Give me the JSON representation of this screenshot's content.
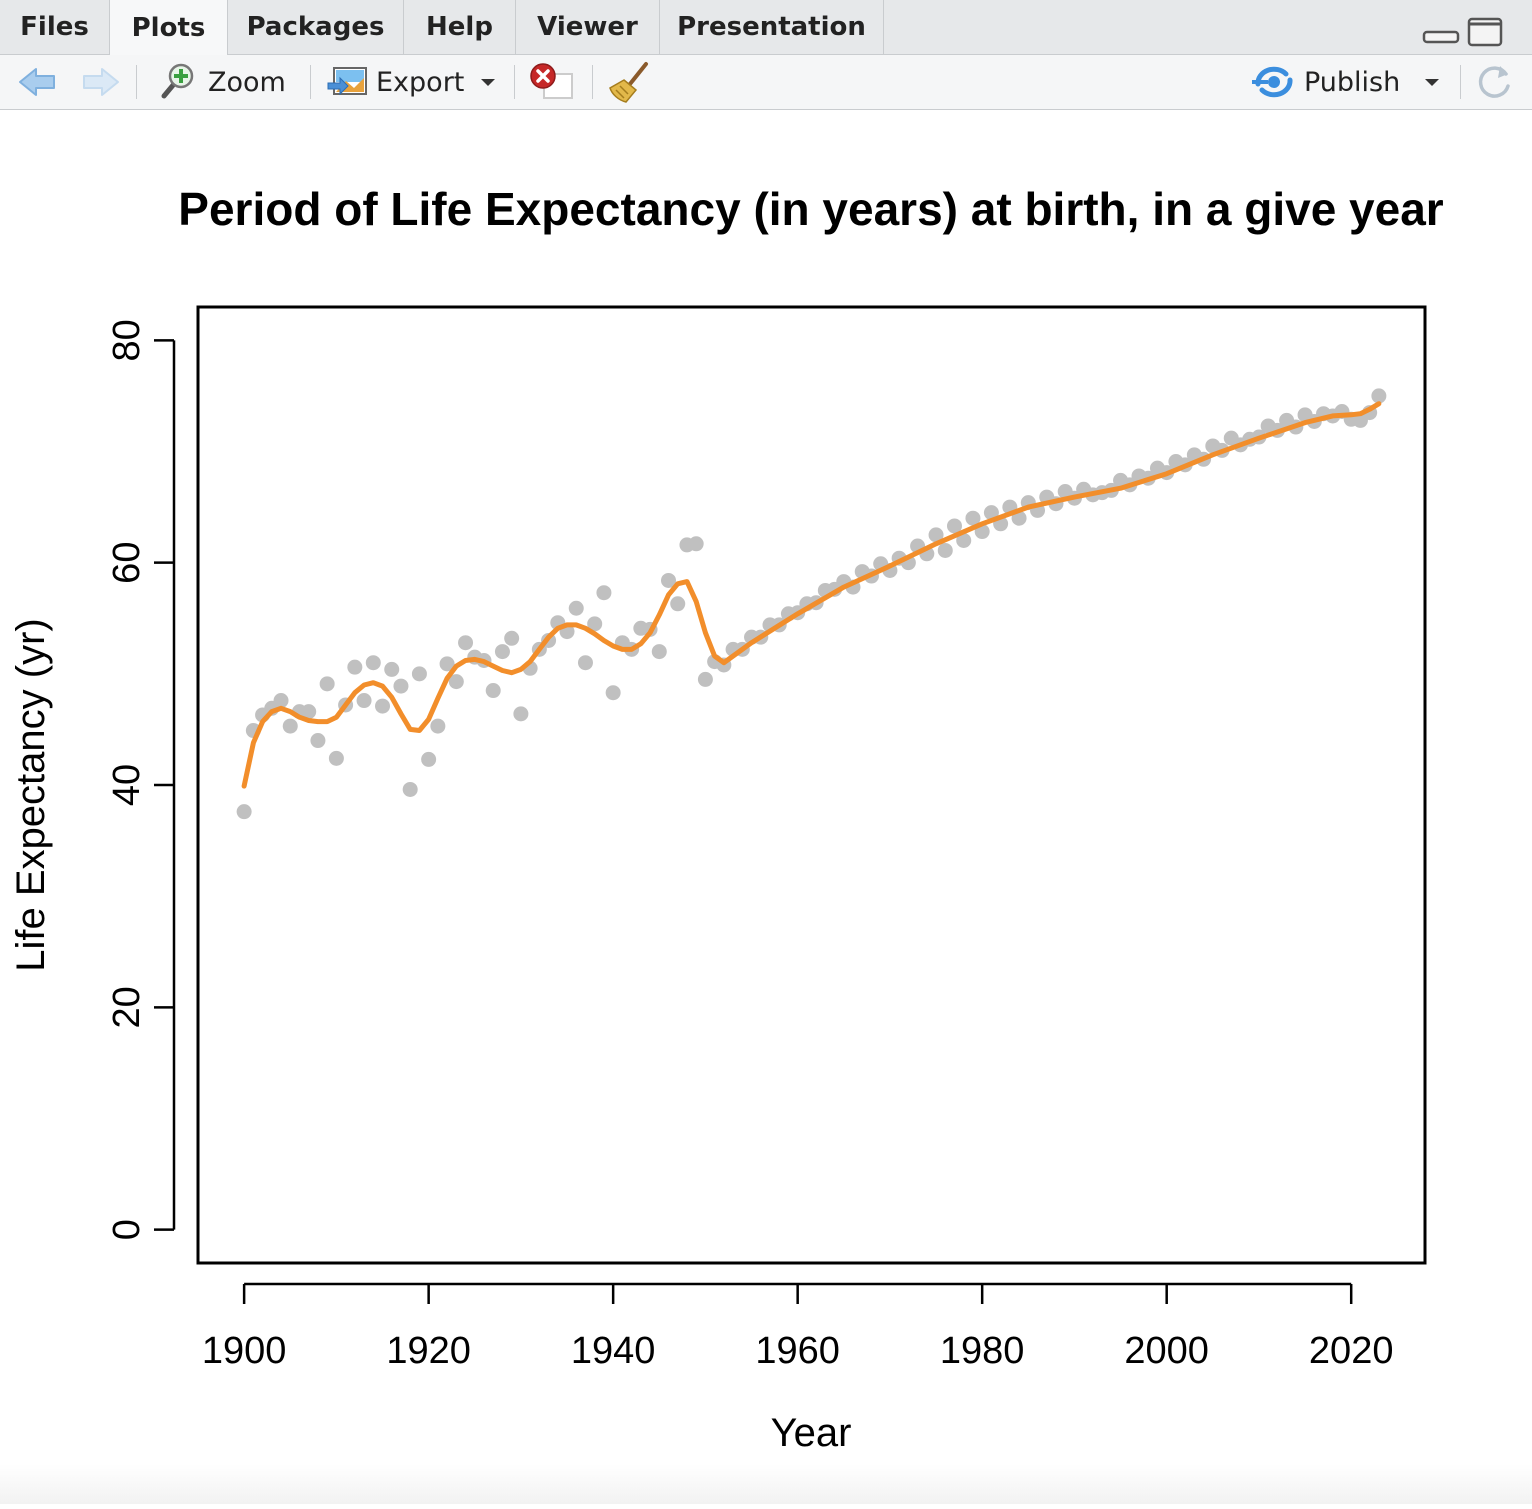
{
  "tabs": [
    {
      "label": "Files",
      "active": false
    },
    {
      "label": "Plots",
      "active": true
    },
    {
      "label": "Packages",
      "active": false
    },
    {
      "label": "Help",
      "active": false
    },
    {
      "label": "Viewer",
      "active": false
    },
    {
      "label": "Presentation",
      "active": false
    }
  ],
  "toolbar": {
    "zoom_label": "Zoom",
    "export_label": "Export",
    "publish_label": "Publish"
  },
  "icons": {
    "back": "back-arrow-icon",
    "forward": "forward-arrow-icon",
    "zoom": "magnifier-icon",
    "export": "export-image-icon",
    "remove": "remove-plot-icon",
    "clear": "broom-icon",
    "publish": "publish-icon",
    "refresh": "refresh-icon",
    "minimize": "minimize-icon",
    "maximize": "maximize-icon"
  },
  "colors": {
    "points": "#c0c0c0",
    "line": "#f28e2b",
    "frame": "#000000"
  },
  "chart_data": {
    "type": "scatter",
    "title": "Period of Life Expectancy (in years) at birth, in a give year",
    "xlabel": "Year",
    "ylabel": "Life Expectancy (yr)",
    "xlim": [
      1895,
      2028
    ],
    "ylim": [
      -3,
      83
    ],
    "xticks": [
      1900,
      1920,
      1940,
      1960,
      1980,
      2000,
      2020
    ],
    "yticks": [
      0,
      20,
      40,
      60,
      80
    ],
    "grid": false,
    "legend": "none",
    "series": [
      {
        "kind": "points",
        "x": [
          1900,
          1901,
          1902,
          1903,
          1904,
          1905,
          1906,
          1907,
          1908,
          1909,
          1910,
          1911,
          1912,
          1913,
          1914,
          1915,
          1916,
          1917,
          1918,
          1919,
          1920,
          1921,
          1922,
          1923,
          1924,
          1925,
          1926,
          1927,
          1928,
          1929,
          1930,
          1931,
          1932,
          1933,
          1934,
          1935,
          1936,
          1937,
          1938,
          1939,
          1940,
          1941,
          1942,
          1943,
          1944,
          1945,
          1946,
          1947,
          1948,
          1949,
          1950,
          1951,
          1952,
          1953,
          1954,
          1955,
          1956,
          1957,
          1958,
          1959,
          1960,
          1961,
          1962,
          1963,
          1964,
          1965,
          1966,
          1967,
          1968,
          1969,
          1970,
          1971,
          1972,
          1973,
          1974,
          1975,
          1976,
          1977,
          1978,
          1979,
          1980,
          1981,
          1982,
          1983,
          1984,
          1985,
          1986,
          1987,
          1988,
          1989,
          1990,
          1991,
          1992,
          1993,
          1994,
          1995,
          1996,
          1997,
          1998,
          1999,
          2000,
          2001,
          2002,
          2003,
          2004,
          2005,
          2006,
          2007,
          2008,
          2009,
          2010,
          2011,
          2012,
          2013,
          2014,
          2015,
          2016,
          2017,
          2018,
          2019,
          2020,
          2021,
          2022,
          2023
        ],
        "y": [
          37.6,
          44.9,
          46.3,
          46.9,
          47.6,
          45.3,
          46.6,
          46.6,
          44.0,
          49.1,
          42.4,
          47.2,
          50.6,
          47.6,
          51.0,
          47.1,
          50.4,
          48.9,
          39.6,
          50.0,
          42.3,
          45.3,
          50.9,
          49.3,
          52.8,
          51.5,
          51.2,
          48.5,
          52.0,
          53.2,
          46.4,
          50.5,
          52.2,
          53.0,
          54.6,
          53.8,
          55.9,
          51.0,
          54.5,
          57.3,
          48.3,
          52.8,
          52.2,
          54.1,
          54.0,
          52.0,
          58.4,
          56.3,
          61.6,
          61.7,
          49.5,
          51.1,
          50.8,
          52.2,
          52.2,
          53.3,
          53.3,
          54.4,
          54.4,
          55.4,
          55.5,
          56.3,
          56.4,
          57.5,
          57.6,
          58.3,
          57.8,
          59.2,
          58.8,
          59.9,
          59.3,
          60.4,
          60.0,
          61.5,
          60.8,
          62.5,
          61.1,
          63.3,
          62.0,
          64.0,
          62.8,
          64.5,
          63.5,
          65.0,
          64.0,
          65.4,
          64.7,
          65.9,
          65.3,
          66.4,
          65.8,
          66.6,
          66.1,
          66.3,
          66.5,
          67.4,
          67.0,
          67.8,
          67.6,
          68.5,
          68.1,
          69.1,
          68.8,
          69.7,
          69.3,
          70.5,
          70.1,
          71.2,
          70.6,
          71.1,
          71.3,
          72.3,
          71.9,
          72.8,
          72.2,
          73.3,
          72.7,
          73.4,
          73.2,
          73.6,
          72.9,
          72.8,
          73.5,
          75.0
        ]
      },
      {
        "kind": "smooth-line",
        "x": [
          1900,
          1901,
          1902,
          1903,
          1904,
          1905,
          1906,
          1907,
          1908,
          1909,
          1910,
          1911,
          1912,
          1913,
          1914,
          1915,
          1916,
          1917,
          1918,
          1919,
          1920,
          1921,
          1922,
          1923,
          1924,
          1925,
          1926,
          1927,
          1928,
          1929,
          1930,
          1931,
          1932,
          1933,
          1934,
          1935,
          1936,
          1937,
          1938,
          1939,
          1940,
          1941,
          1942,
          1943,
          1944,
          1945,
          1946,
          1947,
          1948,
          1949,
          1950,
          1951,
          1952,
          1955,
          1960,
          1965,
          1970,
          1975,
          1980,
          1985,
          1990,
          1995,
          2000,
          2005,
          2010,
          2015,
          2018,
          2020,
          2021,
          2022,
          2023
        ],
        "y": [
          39.9,
          43.8,
          45.7,
          46.6,
          46.9,
          46.6,
          46.1,
          45.8,
          45.7,
          45.7,
          46.1,
          47.2,
          48.3,
          49.0,
          49.2,
          48.9,
          47.9,
          46.4,
          45.0,
          44.9,
          45.9,
          47.8,
          49.6,
          50.7,
          51.2,
          51.3,
          51.1,
          50.7,
          50.3,
          50.1,
          50.4,
          51.1,
          52.2,
          53.3,
          54.1,
          54.4,
          54.4,
          54.1,
          53.6,
          53.0,
          52.5,
          52.2,
          52.2,
          52.7,
          53.7,
          55.3,
          57.1,
          58.1,
          58.3,
          56.5,
          53.7,
          51.6,
          51.0,
          52.8,
          55.4,
          57.8,
          59.7,
          61.7,
          63.5,
          65.0,
          65.9,
          66.7,
          68.0,
          69.7,
          71.2,
          72.6,
          73.2,
          73.3,
          73.4,
          73.8,
          74.3
        ]
      }
    ]
  }
}
